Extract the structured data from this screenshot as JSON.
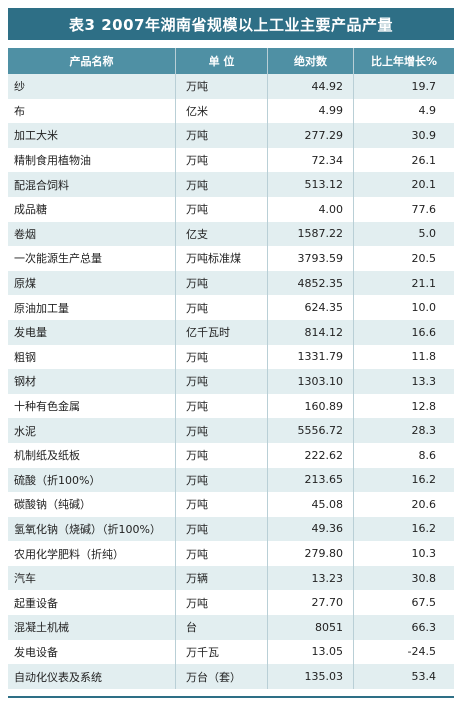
{
  "title": "表3  2007年湖南省规模以上工业主要产品产量",
  "headers": {
    "name": "产品名称",
    "unit": "单    位",
    "abs": "绝对数",
    "growth": "比上年增长%"
  },
  "rows": [
    {
      "name": "纱",
      "unit": "万吨",
      "abs": "44.92",
      "growth": "19.7"
    },
    {
      "name": "布",
      "unit": "亿米",
      "abs": "4.99",
      "growth": "4.9"
    },
    {
      "name": "加工大米",
      "unit": "万吨",
      "abs": "277.29",
      "growth": "30.9"
    },
    {
      "name": "精制食用植物油",
      "unit": "万吨",
      "abs": "72.34",
      "growth": "26.1"
    },
    {
      "name": "配混合饲料",
      "unit": "万吨",
      "abs": "513.12",
      "growth": "20.1"
    },
    {
      "name": "成品糖",
      "unit": "万吨",
      "abs": "4.00",
      "growth": "77.6"
    },
    {
      "name": "卷烟",
      "unit": "亿支",
      "abs": "1587.22",
      "growth": "5.0"
    },
    {
      "name": "一次能源生产总量",
      "unit": "万吨标准煤",
      "abs": "3793.59",
      "growth": "20.5"
    },
    {
      "name": "原煤",
      "unit": "万吨",
      "abs": "4852.35",
      "growth": "21.1"
    },
    {
      "name": "原油加工量",
      "unit": "万吨",
      "abs": "624.35",
      "growth": "10.0"
    },
    {
      "name": "发电量",
      "unit": "亿千瓦时",
      "abs": "814.12",
      "growth": "16.6"
    },
    {
      "name": "粗钢",
      "unit": "万吨",
      "abs": "1331.79",
      "growth": "11.8"
    },
    {
      "name": "钢材",
      "unit": "万吨",
      "abs": "1303.10",
      "growth": "13.3"
    },
    {
      "name": "十种有色金属",
      "unit": "万吨",
      "abs": "160.89",
      "growth": "12.8"
    },
    {
      "name": "水泥",
      "unit": "万吨",
      "abs": "5556.72",
      "growth": "28.3"
    },
    {
      "name": "机制纸及纸板",
      "unit": "万吨",
      "abs": "222.62",
      "growth": "8.6"
    },
    {
      "name": "硫酸（折100%）",
      "unit": "万吨",
      "abs": "213.65",
      "growth": "16.2"
    },
    {
      "name": "碳酸钠（纯碱）",
      "unit": "万吨",
      "abs": "45.08",
      "growth": "20.6"
    },
    {
      "name": "氢氧化钠（烧碱）（折100%）",
      "unit": "万吨",
      "abs": "49.36",
      "growth": "16.2"
    },
    {
      "name": "农用化学肥料（折纯）",
      "unit": "万吨",
      "abs": "279.80",
      "growth": "10.3"
    },
    {
      "name": "汽车",
      "unit": "万辆",
      "abs": "13.23",
      "growth": "30.8"
    },
    {
      "name": "起重设备",
      "unit": "万吨",
      "abs": "27.70",
      "growth": "67.5"
    },
    {
      "name": "混凝土机械",
      "unit": "台",
      "abs": "8051",
      "growth": "66.3"
    },
    {
      "name": "发电设备",
      "unit": "万千瓦",
      "abs": "13.05",
      "growth": "-24.5"
    },
    {
      "name": "自动化仪表及系统",
      "unit": "万台（套）",
      "abs": "135.03",
      "growth": "53.4"
    }
  ],
  "colors": {
    "title_bg": "#2e6f86",
    "header_bg": "#4f90a4",
    "stripe": "#e2eef0"
  }
}
